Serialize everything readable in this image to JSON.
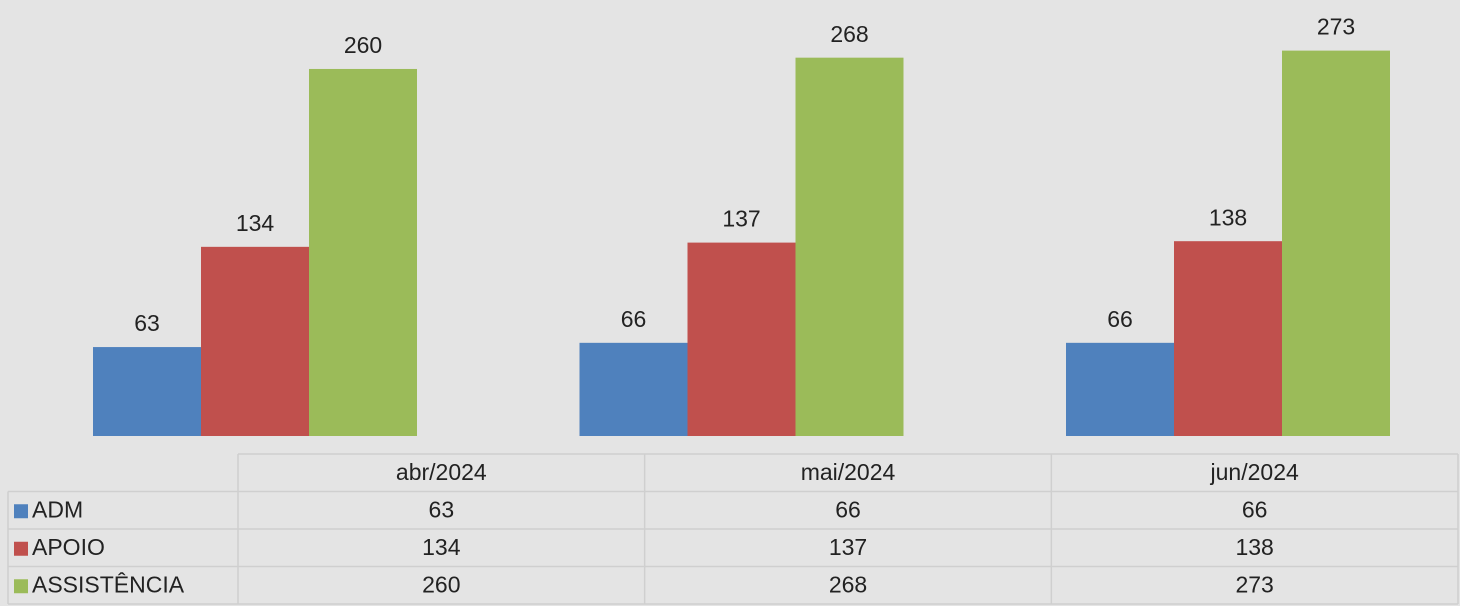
{
  "chart_data": {
    "type": "bar",
    "categories": [
      "abr/2024",
      "mai/2024",
      "jun/2024"
    ],
    "series": [
      {
        "name": "ADM",
        "color": "#4f81bd",
        "values": [
          63,
          66,
          66
        ]
      },
      {
        "name": "APOIO",
        "color": "#c0504d",
        "values": [
          134,
          137,
          138
        ]
      },
      {
        "name": "ASSISTÊNCIA",
        "color": "#9bbb59",
        "values": [
          260,
          268,
          273
        ]
      }
    ],
    "ylim": [
      0,
      300
    ]
  }
}
